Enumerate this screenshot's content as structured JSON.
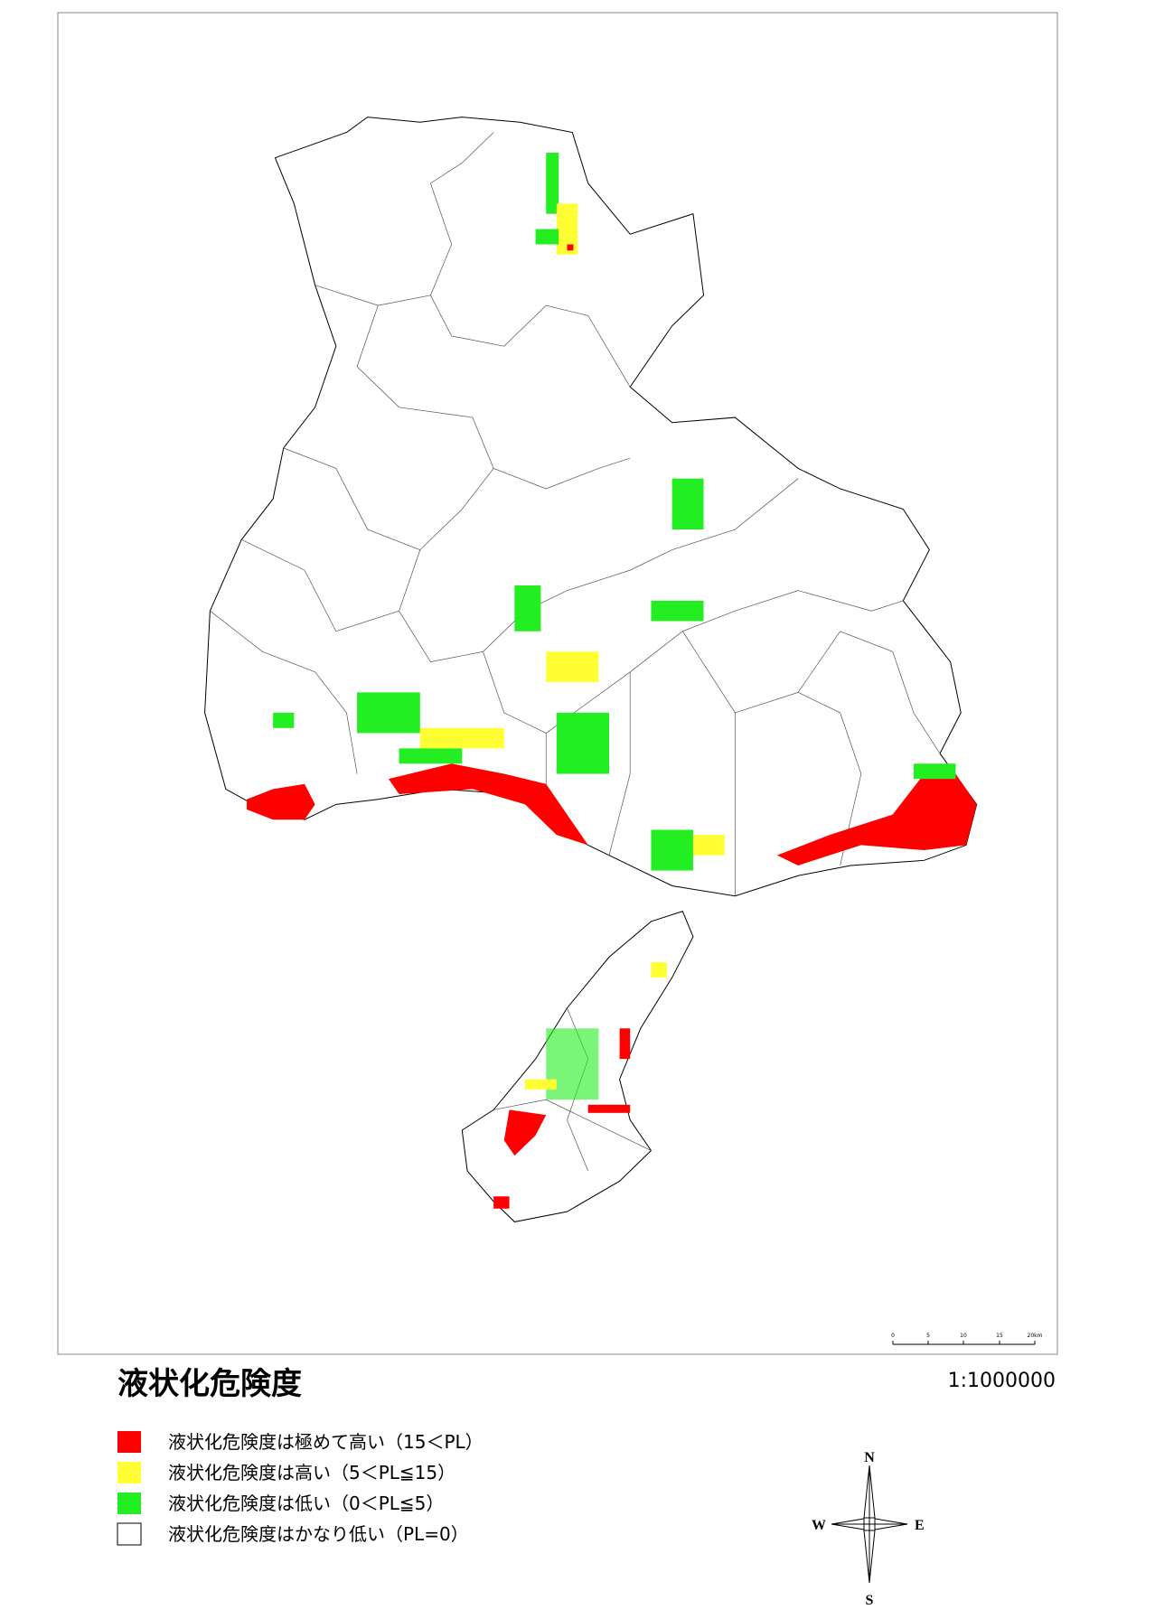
{
  "title": "液状化危険度",
  "scale": "1:1000000",
  "scale_bar": {
    "labels": [
      "0",
      "5",
      "10",
      "15",
      "20km"
    ]
  },
  "legend": [
    {
      "label": "液状化危険度は極めて高い（15＜PL）",
      "color": "#ff0000"
    },
    {
      "label": "液状化危険度は高い（5＜PL≦15）",
      "color": "#ffff33"
    },
    {
      "label": "液状化危険度は低い（0＜PL≦5）",
      "color": "#22ee22"
    },
    {
      "label": "液状化危険度はかなり低い（PL=0）",
      "color": "#ffffff"
    }
  ],
  "compass": {
    "n": "N",
    "e": "E",
    "s": "S",
    "w": "W"
  }
}
